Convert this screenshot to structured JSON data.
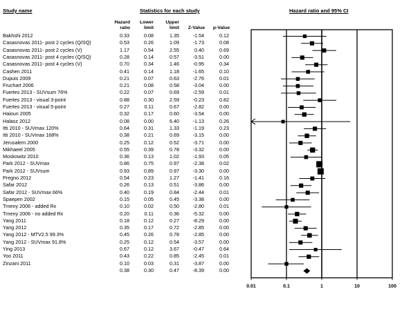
{
  "headers": {
    "study_name": "Study name",
    "stats_title": "Statistics for each study",
    "plot_title": "Hazard ratio and 95% CI",
    "col_hr": [
      "Hazard",
      "ratio"
    ],
    "col_lower": [
      "Lower",
      "limit"
    ],
    "col_upper": [
      "Upper",
      "limit"
    ],
    "col_z": "Z-Value",
    "col_p": "p-Value"
  },
  "chart_data": {
    "type": "forest",
    "scale": "log",
    "xlim": [
      0.01,
      100
    ],
    "xticks": [
      "0.01",
      "0.1",
      "1",
      "10",
      "100"
    ],
    "xtick_values": [
      0.01,
      0.1,
      1,
      10,
      100
    ],
    "studies": [
      {
        "name": "Bakhshi 2012",
        "hr": "0.33",
        "lower": "0.08",
        "upper": "1.35",
        "z": "-1.54",
        "p": "0.12"
      },
      {
        "name": "Casasnovas 2011- post 2 cycles (Q/SQ)",
        "hr": "0.53",
        "lower": "0.26",
        "upper": "1.09",
        "z": "-1.73",
        "p": "0.08"
      },
      {
        "name": "Casasnovas 2011- post 2 cycles (V)",
        "hr": "1.17",
        "lower": "0.54",
        "upper": "2.55",
        "z": "0.40",
        "p": "0.69"
      },
      {
        "name": "Casasnovas 2011- post 4 cycles (Q/SQ)",
        "hr": "0.28",
        "lower": "0.14",
        "upper": "0.57",
        "z": "-3.51",
        "p": "0.00"
      },
      {
        "name": "Casasnovas 2011- post 4 cycles (V)",
        "hr": "0.70",
        "lower": "0.34",
        "upper": "1.46",
        "z": "-0.95",
        "p": "0.34"
      },
      {
        "name": "Cashen 2011",
        "hr": "0.41",
        "lower": "0.14",
        "upper": "1.18",
        "z": "-1.65",
        "p": "0.10"
      },
      {
        "name": "Dupuis 2009",
        "hr": "0.21",
        "lower": "0.07",
        "upper": "0.63",
        "z": "-2.76",
        "p": "0.01"
      },
      {
        "name": "Fruchart 2006",
        "hr": "0.21",
        "lower": "0.08",
        "upper": "0.58",
        "z": "-3.04",
        "p": "0.00"
      },
      {
        "name": "Fuertes 2013 - SUVsum 76%",
        "hr": "0.22",
        "lower": "0.07",
        "upper": "0.69",
        "z": "-2.59",
        "p": "0.01"
      },
      {
        "name": "Fuertes 2013 - visual 3-point",
        "hr": "0.88",
        "lower": "0.30",
        "upper": "2.59",
        "z": "-0.23",
        "p": "0.82"
      },
      {
        "name": "Fuertes 2013 - visual 5-point",
        "hr": "0.27",
        "lower": "0.11",
        "upper": "0.67",
        "z": "-2.82",
        "p": "0.00"
      },
      {
        "name": "Haioun 2005",
        "hr": "0.32",
        "lower": "0.17",
        "upper": "0.60",
        "z": "-3.54",
        "p": "0.00"
      },
      {
        "name": "Halasz 2012",
        "hr": "0.08",
        "lower": "0.00",
        "upper": "6.40",
        "z": "-1.13",
        "p": "0.26"
      },
      {
        "name": "Itti 2010 - SUVmax 120%",
        "hr": "0.64",
        "lower": "0.31",
        "upper": "1.33",
        "z": "-1.19",
        "p": "0.23"
      },
      {
        "name": "Itti 2010 - SUVmax 168%",
        "hr": "0.38",
        "lower": "0.21",
        "upper": "0.69",
        "z": "-3.15",
        "p": "0.00"
      },
      {
        "name": "Jerusalem 2000",
        "hr": "0.25",
        "lower": "0.12",
        "upper": "0.52",
        "z": "-3.71",
        "p": "0.00"
      },
      {
        "name": "Mikhaeel 2005",
        "hr": "0.55",
        "lower": "0.39",
        "upper": "0.78",
        "z": "-3.32",
        "p": "0.00"
      },
      {
        "name": "Moskowitz 2010",
        "hr": "0.36",
        "lower": "0.13",
        "upper": "1.02",
        "z": "-1.93",
        "p": "0.05"
      },
      {
        "name": "Park 2012 - SUVmax",
        "hr": "0.86",
        "lower": "0.75",
        "upper": "0.97",
        "z": "-2.38",
        "p": "0.02"
      },
      {
        "name": "Park 2012 - SUVsum",
        "hr": "0.93",
        "lower": "0.89",
        "upper": "0.97",
        "z": "-3.30",
        "p": "0.00"
      },
      {
        "name": "Pregno 2012",
        "hr": "0.54",
        "lower": "0.23",
        "upper": "1.27",
        "z": "-1.41",
        "p": "0.16"
      },
      {
        "name": "Safar 2012",
        "hr": "0.26",
        "lower": "0.13",
        "upper": "0.51",
        "z": "-3.86",
        "p": "0.00"
      },
      {
        "name": "Safar 2012 - SUVmax 66%",
        "hr": "0.40",
        "lower": "0.19",
        "upper": "0.84",
        "z": "-2.44",
        "p": "0.01"
      },
      {
        "name": "Spaepen 2002",
        "hr": "0.15",
        "lower": "0.05",
        "upper": "0.45",
        "z": "-3.38",
        "p": "0.00"
      },
      {
        "name": "Trneny 2006 - added Rx",
        "hr": "0.10",
        "lower": "0.02",
        "upper": "0.50",
        "z": "-2.80",
        "p": "0.01"
      },
      {
        "name": "Trneny 2006 - no added Rx",
        "hr": "0.20",
        "lower": "0.11",
        "upper": "0.36",
        "z": "-5.32",
        "p": "0.00"
      },
      {
        "name": "Yang 2011",
        "hr": "0.18",
        "lower": "0.12",
        "upper": "0.27",
        "z": "-8.29",
        "p": "0.00"
      },
      {
        "name": "Yang 2012",
        "hr": "0.35",
        "lower": "0.17",
        "upper": "0.72",
        "z": "-2.85",
        "p": "0.00"
      },
      {
        "name": "Yang 2012 - MTV2.5 99.3%",
        "hr": "0.45",
        "lower": "0.26",
        "upper": "0.78",
        "z": "-2.85",
        "p": "0.00"
      },
      {
        "name": "Yang 2012 - SUVmax 91.8%",
        "hr": "0.25",
        "lower": "0.12",
        "upper": "0.54",
        "z": "-3.57",
        "p": "0.00"
      },
      {
        "name": "Ying 2013",
        "hr": "0.67",
        "lower": "0.12",
        "upper": "3.67",
        "z": "-0.47",
        "p": "0.64"
      },
      {
        "name": "Yoo 2011",
        "hr": "0.43",
        "lower": "0.22",
        "upper": "0.85",
        "z": "-2.45",
        "p": "0.01"
      },
      {
        "name": "Zinzani 2011",
        "hr": "0.10",
        "lower": "0.03",
        "upper": "0.31",
        "z": "-3.87",
        "p": "0.00"
      }
    ],
    "summary": {
      "hr": "0.38",
      "lower": "0.30",
      "upper": "0.47",
      "z": "-8.39",
      "p": "0.00"
    }
  }
}
